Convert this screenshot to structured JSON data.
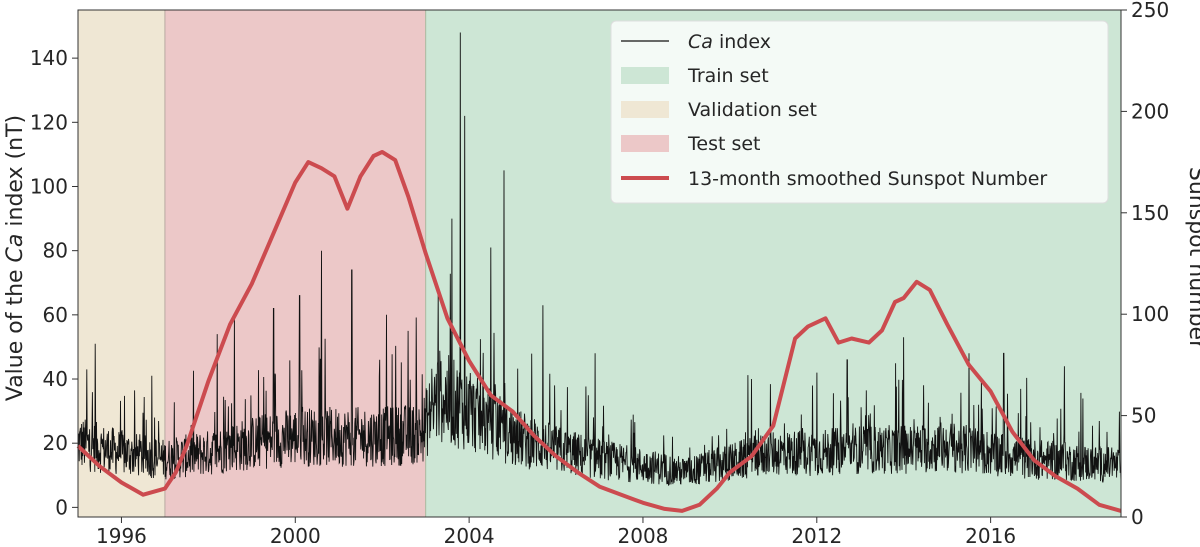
{
  "chart_data": {
    "type": "line",
    "xlim": [
      1995.0,
      2019.0
    ],
    "ylim_left": [
      -3,
      155
    ],
    "ylim_right": [
      0,
      250
    ],
    "ylabel_left_parts": [
      "Value of the ",
      "Ca",
      " index (nT)"
    ],
    "ylabel_right": "Sunspot number",
    "x_ticks": [
      1996,
      2000,
      2004,
      2008,
      2012,
      2016
    ],
    "y_ticks_left": [
      0,
      20,
      40,
      60,
      80,
      100,
      120,
      140
    ],
    "y_ticks_right": [
      0,
      50,
      100,
      150,
      200,
      250
    ],
    "legend_position": "top-right",
    "spans": [
      {
        "name": "Validation set",
        "start": 1995.0,
        "end": 1997.0,
        "color": "#efe7d4"
      },
      {
        "name": "Test set",
        "start": 1997.0,
        "end": 2003.0,
        "color": "#ecc8c8"
      },
      {
        "name": "Train set",
        "start": 2003.0,
        "end": 2019.0,
        "color": "#cde6d5"
      }
    ],
    "series": [
      {
        "name": "Ca index",
        "name_parts": [
          "Ca",
          " index"
        ],
        "axis": "left",
        "color": "#111111",
        "daily_noise": true,
        "baseline": {
          "x": [
            1995.0,
            1996.0,
            1997.0,
            1998.0,
            1999.0,
            2000.0,
            2001.0,
            2002.0,
            2002.9,
            2003.3,
            2004.0,
            2005.0,
            2006.0,
            2007.0,
            2008.0,
            2009.0,
            2010.0,
            2011.0,
            2012.0,
            2013.0,
            2014.0,
            2015.0,
            2016.0,
            2017.0,
            2018.0,
            2019.0
          ],
          "y": [
            20,
            17,
            15,
            17,
            20,
            22,
            22,
            22,
            23,
            35,
            30,
            22,
            18,
            15,
            13,
            11,
            14,
            17,
            17,
            18,
            18,
            19,
            17,
            15,
            14,
            13
          ]
        },
        "spikes": [
          {
            "x": 1995.2,
            "y": 43
          },
          {
            "x": 1995.4,
            "y": 51
          },
          {
            "x": 1996.7,
            "y": 41
          },
          {
            "x": 1998.2,
            "y": 54
          },
          {
            "x": 1998.6,
            "y": 60
          },
          {
            "x": 1999.5,
            "y": 62
          },
          {
            "x": 2000.1,
            "y": 66
          },
          {
            "x": 2000.6,
            "y": 80
          },
          {
            "x": 2001.3,
            "y": 74
          },
          {
            "x": 2002.1,
            "y": 60
          },
          {
            "x": 2002.6,
            "y": 55
          },
          {
            "x": 2003.6,
            "y": 90
          },
          {
            "x": 2003.8,
            "y": 148
          },
          {
            "x": 2003.9,
            "y": 122
          },
          {
            "x": 2004.5,
            "y": 81
          },
          {
            "x": 2004.8,
            "y": 105
          },
          {
            "x": 2005.7,
            "y": 63
          },
          {
            "x": 2006.9,
            "y": 48
          },
          {
            "x": 2010.5,
            "y": 40
          },
          {
            "x": 2012.0,
            "y": 42
          },
          {
            "x": 2012.7,
            "y": 46
          },
          {
            "x": 2014.0,
            "y": 53
          },
          {
            "x": 2015.5,
            "y": 48
          },
          {
            "x": 2016.3,
            "y": 48
          },
          {
            "x": 2017.7,
            "y": 44
          }
        ]
      },
      {
        "name": "13-month smoothed Sunspot Number",
        "axis": "right",
        "color": "#cc4b4f",
        "x": [
          1995.0,
          1995.5,
          1996.0,
          1996.5,
          1997.0,
          1997.25,
          1997.5,
          1998.0,
          1998.5,
          1999.0,
          1999.5,
          2000.0,
          2000.3,
          2000.6,
          2000.9,
          2001.2,
          2001.5,
          2001.8,
          2002.0,
          2002.3,
          2002.6,
          2003.0,
          2003.5,
          2004.0,
          2004.5,
          2005.0,
          2005.5,
          2006.0,
          2006.5,
          2007.0,
          2007.5,
          2008.0,
          2008.5,
          2008.9,
          2009.3,
          2009.7,
          2010.0,
          2010.5,
          2011.0,
          2011.5,
          2011.8,
          2012.2,
          2012.5,
          2012.8,
          2013.2,
          2013.5,
          2013.8,
          2014.0,
          2014.3,
          2014.6,
          2015.0,
          2015.5,
          2016.0,
          2016.5,
          2017.0,
          2017.5,
          2018.0,
          2018.5,
          2019.0
        ],
        "y": [
          35,
          25,
          17,
          11,
          14,
          22,
          35,
          67,
          95,
          115,
          140,
          165,
          175,
          172,
          168,
          152,
          168,
          178,
          180,
          176,
          158,
          130,
          98,
          77,
          60,
          52,
          40,
          30,
          22,
          15,
          11,
          7,
          4,
          3,
          6,
          14,
          22,
          30,
          45,
          88,
          94,
          98,
          86,
          88,
          86,
          92,
          106,
          108,
          116,
          112,
          95,
          75,
          62,
          42,
          28,
          20,
          14,
          6,
          3
        ]
      }
    ]
  }
}
